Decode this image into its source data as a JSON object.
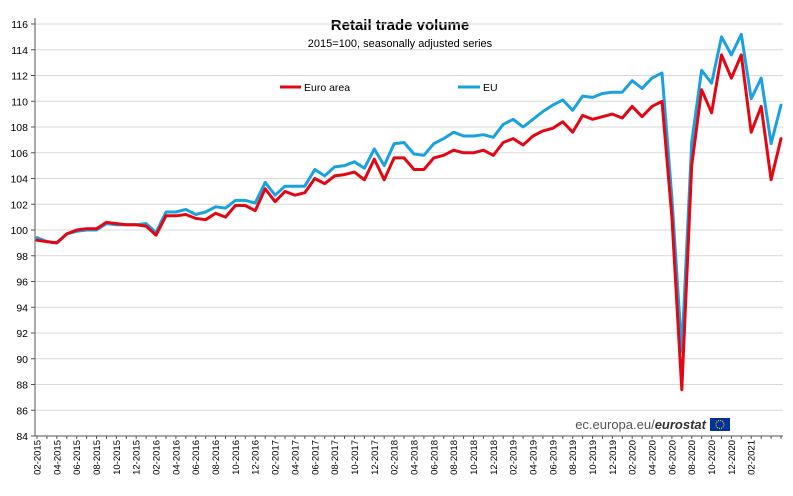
{
  "chart_data": {
    "type": "line",
    "title": "Retail trade volume",
    "subtitle": "2015=100, seasonally adjusted series",
    "xlabel": "",
    "ylabel": "",
    "ylim": [
      84,
      116
    ],
    "y_ticks": [
      84,
      86,
      88,
      90,
      92,
      94,
      96,
      98,
      100,
      102,
      104,
      106,
      108,
      110,
      112,
      114,
      116
    ],
    "x_labels": [
      "02-2015",
      "04-2015",
      "06-2015",
      "08-2015",
      "10-2015",
      "12-2015",
      "02-2016",
      "04-2016",
      "06-2016",
      "08-2016",
      "10-2016",
      "12-2016",
      "02-2017",
      "04-2017",
      "06-2017",
      "08-2017",
      "10-2017",
      "12-2017",
      "02-2018",
      "04-2018",
      "06-2018",
      "08-2018",
      "10-2018",
      "12-2018",
      "02-2019",
      "04-2019",
      "06-2019",
      "08-2019",
      "10-2019",
      "12-2019",
      "02-2020",
      "04-2020",
      "06-2020",
      "08-2020",
      "10-2020",
      "12-2020",
      "02-2021"
    ],
    "grid": true,
    "legend_position": "top",
    "series": [
      {
        "name": "Euro area",
        "color": "#e30613",
        "values": [
          99.2,
          99.1,
          99.0,
          99.7,
          100.0,
          100.1,
          100.1,
          100.6,
          100.5,
          100.4,
          100.4,
          100.3,
          99.6,
          101.1,
          101.1,
          101.2,
          100.9,
          100.8,
          101.3,
          101.0,
          101.9,
          101.9,
          101.5,
          103.2,
          102.2,
          103.0,
          102.7,
          102.9,
          104.0,
          103.6,
          104.2,
          104.3,
          104.5,
          103.9,
          105.5,
          103.9,
          105.6,
          105.6,
          104.7,
          104.7,
          105.6,
          105.8,
          106.2,
          106.0,
          106.0,
          106.2,
          105.8,
          106.8,
          107.1,
          106.6,
          107.3,
          107.7,
          107.9,
          108.4,
          107.6,
          108.9,
          108.6,
          108.8,
          109.0,
          108.7,
          109.6,
          108.8,
          109.6,
          110.0,
          101.0,
          87.6,
          105.0,
          110.9,
          109.1,
          113.6,
          111.8,
          113.6,
          107.6,
          109.6,
          103.9,
          107.1
        ]
      },
      {
        "name": "EU",
        "color": "#1aa1e0",
        "values": [
          99.4,
          99.1,
          99.0,
          99.7,
          99.9,
          100.0,
          100.0,
          100.5,
          100.4,
          100.4,
          100.4,
          100.5,
          99.8,
          101.4,
          101.4,
          101.6,
          101.2,
          101.4,
          101.8,
          101.7,
          102.3,
          102.3,
          102.1,
          103.7,
          102.7,
          103.4,
          103.4,
          103.4,
          104.7,
          104.2,
          104.9,
          105.0,
          105.3,
          104.8,
          106.3,
          105.0,
          106.7,
          106.8,
          105.9,
          105.8,
          106.7,
          107.1,
          107.6,
          107.3,
          107.3,
          107.4,
          107.2,
          108.2,
          108.6,
          108.0,
          108.6,
          109.2,
          109.7,
          110.1,
          109.3,
          110.4,
          110.3,
          110.6,
          110.7,
          110.7,
          111.6,
          111.0,
          111.8,
          112.2,
          102.5,
          90.6,
          106.8,
          112.4,
          111.4,
          115.0,
          113.6,
          115.2,
          110.2,
          111.8,
          106.7,
          109.7
        ]
      }
    ]
  },
  "legend": {
    "euro_area_label": "Euro area",
    "eu_label": "EU"
  },
  "branding": {
    "prefix": "ec.europa.eu/",
    "name": "eurostat"
  }
}
